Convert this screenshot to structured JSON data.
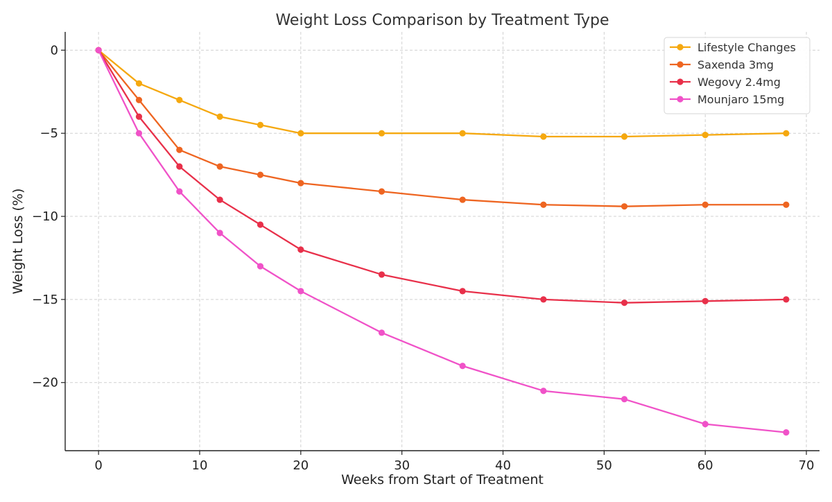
{
  "chart_data": {
    "type": "line",
    "title": "Weight Loss Comparison by Treatment Type",
    "xlabel": "Weeks from Start of Treatment",
    "ylabel": "Weight Loss (%)",
    "xlim": [
      -3.3,
      71.3
    ],
    "ylim": [
      -24.1,
      1.1
    ],
    "xticks": [
      0,
      10,
      20,
      30,
      40,
      50,
      60,
      70
    ],
    "yticks": [
      0,
      -5,
      -10,
      -15,
      -20
    ],
    "xtick_labels": [
      "0",
      "10",
      "20",
      "30",
      "40",
      "50",
      "60",
      "70"
    ],
    "ytick_labels": [
      "0",
      "−5",
      "−10",
      "−15",
      "−20"
    ],
    "grid": true,
    "legend_position": "top-right",
    "x": [
      0,
      4,
      8,
      12,
      16,
      20,
      28,
      36,
      44,
      52,
      60,
      68
    ],
    "series": [
      {
        "name": "Lifestyle Changes",
        "color": "#F5A80F",
        "values": [
          0,
          -2,
          -3,
          -4,
          -4.5,
          -5,
          -5,
          -5,
          -5.2,
          -5.2,
          -5.1,
          -5
        ]
      },
      {
        "name": "Saxenda 3mg",
        "color": "#EE6521",
        "values": [
          0,
          -3,
          -6,
          -7,
          -7.5,
          -8,
          -8.5,
          -9,
          -9.3,
          -9.4,
          -9.3,
          -9.3
        ]
      },
      {
        "name": "Wegovy 2.4mg",
        "color": "#E8304A",
        "values": [
          0,
          -4,
          -7,
          -9,
          -10.5,
          -12,
          -13.5,
          -14.5,
          -15,
          -15.2,
          -15.1,
          -15
        ]
      },
      {
        "name": "Mounjaro 15mg",
        "color": "#F052C8",
        "values": [
          0,
          -5,
          -8.5,
          -11,
          -13,
          -14.5,
          -17,
          -19,
          -20.5,
          -21,
          -22.5,
          -23
        ]
      }
    ]
  }
}
